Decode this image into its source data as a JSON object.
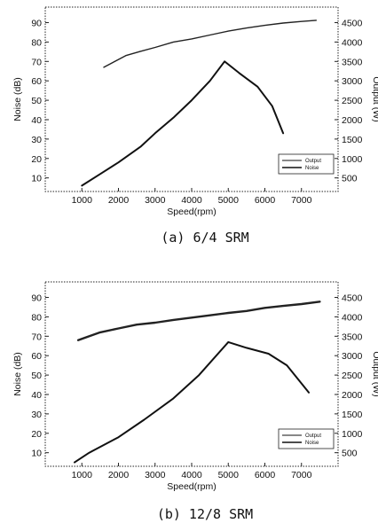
{
  "chart_data": [
    {
      "type": "line",
      "caption": "(a) 6/4 SRM",
      "xlabel": "Speed(rpm)",
      "ylabel": "Noise (dB)",
      "y2label": "Output (W)",
      "xlim": [
        0,
        8000
      ],
      "xticks": [
        1000,
        2000,
        3000,
        4000,
        5000,
        6000,
        7000
      ],
      "ylim": [
        3,
        98
      ],
      "yticks": [
        10,
        20,
        30,
        40,
        50,
        60,
        70,
        80,
        90
      ],
      "y2lim": [
        150,
        4900
      ],
      "y2ticks": [
        500,
        1000,
        1500,
        2000,
        2500,
        3000,
        3500,
        4000,
        4500
      ],
      "legend": {
        "position": "bottom-right",
        "entries": [
          "Output",
          "Noise"
        ]
      },
      "series": [
        {
          "name": "Output",
          "axis": "right",
          "x": [
            1600,
            1800,
            2000,
            2200,
            2600,
            3000,
            3500,
            4000,
            4500,
            5000,
            5500,
            6000,
            6500,
            7000,
            7400
          ],
          "values": [
            3350,
            3450,
            3550,
            3650,
            3760,
            3860,
            4000,
            4080,
            4180,
            4280,
            4360,
            4430,
            4490,
            4530,
            4560
          ]
        },
        {
          "name": "Noise",
          "axis": "left",
          "x": [
            1000,
            1500,
            2000,
            2600,
            3000,
            3500,
            4000,
            4500,
            4900,
            5300,
            5800,
            6200,
            6500
          ],
          "values": [
            6,
            12,
            18,
            26,
            33,
            41,
            50,
            60,
            70,
            64,
            57,
            47,
            33
          ]
        }
      ]
    },
    {
      "type": "line",
      "caption": "(b) 12/8 SRM",
      "xlabel": "Speed(rpm)",
      "ylabel": "Noise (dB)",
      "y2label": "Output (W)",
      "xlim": [
        0,
        8000
      ],
      "xticks": [
        1000,
        2000,
        3000,
        4000,
        5000,
        6000,
        7000
      ],
      "ylim": [
        3,
        98
      ],
      "yticks": [
        10,
        20,
        30,
        40,
        50,
        60,
        70,
        80,
        90
      ],
      "y2lim": [
        150,
        4900
      ],
      "y2ticks": [
        500,
        1000,
        1500,
        2000,
        2500,
        3000,
        3500,
        4000,
        4500
      ],
      "legend": {
        "position": "bottom-right",
        "entries": [
          "Output",
          "Noise"
        ]
      },
      "series": [
        {
          "name": "Output",
          "axis": "right",
          "x": [
            900,
            1500,
            2000,
            2500,
            3000,
            3500,
            4000,
            4500,
            5000,
            5500,
            6000,
            6500,
            7000,
            7500
          ],
          "values": [
            3400,
            3600,
            3700,
            3800,
            3850,
            3920,
            3980,
            4040,
            4100,
            4150,
            4230,
            4280,
            4330,
            4390
          ]
        },
        {
          "name": "Noise",
          "axis": "left",
          "x": [
            800,
            1200,
            2000,
            2700,
            3500,
            4200,
            5000,
            5500,
            6100,
            6600,
            7200
          ],
          "values": [
            5,
            10,
            18,
            27,
            38,
            50,
            67,
            64,
            61,
            55,
            41
          ]
        }
      ]
    }
  ]
}
